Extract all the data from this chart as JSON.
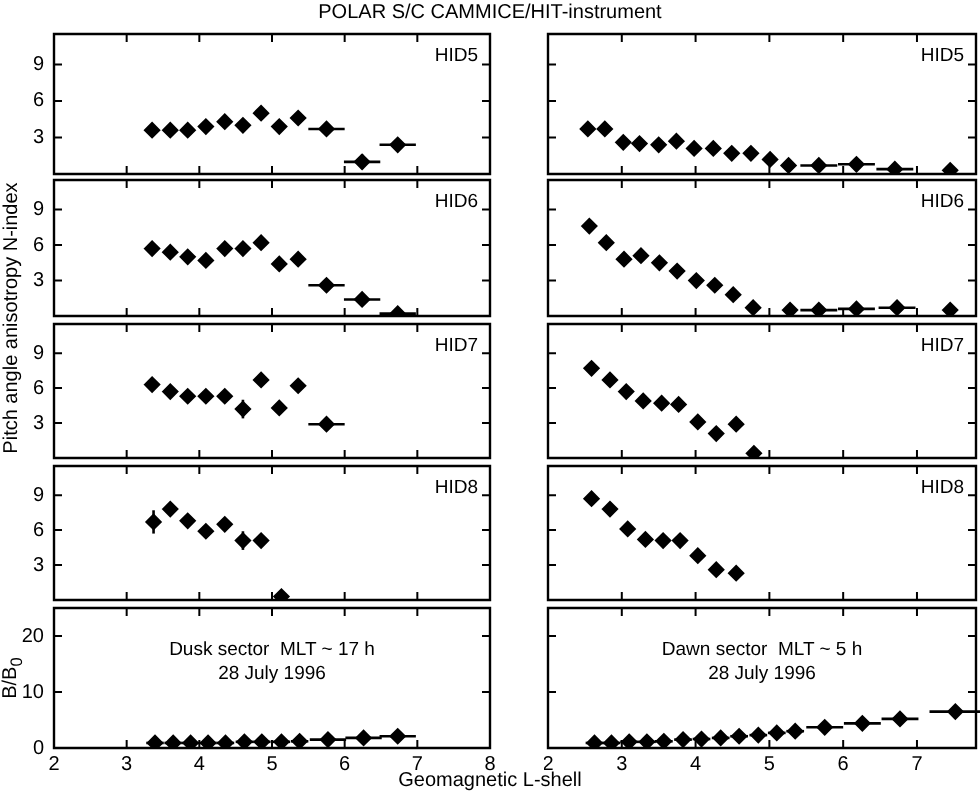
{
  "chart_data": [
    {
      "type": "scatter",
      "title": "POLAR S/C  CAMMICE/HIT-instrument",
      "ylabel": "Pitch angle anisotropy N-index",
      "annotations": [
        "HID5"
      ],
      "x": [
        3.35,
        3.6,
        3.84,
        4.09,
        4.35,
        4.6,
        4.85,
        5.1,
        5.36,
        5.75,
        6.24,
        6.73
      ],
      "values": [
        3.6,
        3.6,
        3.6,
        3.9,
        4.3,
        4.0,
        5.0,
        3.9,
        4.6,
        3.7,
        1.0,
        2.4
      ],
      "errors": [
        null,
        null,
        null,
        null,
        null,
        null,
        null,
        null,
        null,
        null,
        0.6,
        null
      ],
      "xerrors": [
        null,
        null,
        null,
        null,
        null,
        null,
        null,
        null,
        null,
        0.25,
        0.25,
        0.25
      ],
      "color": "#000000",
      "marker": "diamond",
      "xlim": [
        2,
        8
      ],
      "xticks": [
        2,
        3,
        4,
        5,
        6,
        7,
        8
      ],
      "ylim": [
        0,
        11.5
      ],
      "yticks": [
        3,
        6,
        9
      ],
      "tick_labels": "y"
    },
    {
      "type": "scatter",
      "annotations": [
        "HID5"
      ],
      "x": [
        2.54,
        2.77,
        3.02,
        3.24,
        3.5,
        3.74,
        3.98,
        4.24,
        4.49,
        4.75,
        5.01,
        5.26,
        5.67,
        6.18,
        6.7,
        7.45
      ],
      "values": [
        3.7,
        3.7,
        2.6,
        2.5,
        2.4,
        2.7,
        2.1,
        2.1,
        1.7,
        1.7,
        1.2,
        0.7,
        0.7,
        0.8,
        0.4,
        0.3
      ],
      "xerrors": [
        null,
        null,
        null,
        null,
        null,
        null,
        null,
        null,
        null,
        null,
        null,
        null,
        0.25,
        0.25,
        0.25,
        null
      ],
      "color": "#000000",
      "marker": "diamond",
      "xlim": [
        2,
        7.8
      ],
      "xticks": [
        2,
        3,
        4,
        5,
        6,
        7
      ],
      "ylim": [
        0,
        11.5
      ],
      "yticks": [
        3,
        6,
        9
      ],
      "tick_labels": false
    },
    {
      "type": "scatter",
      "annotations": [
        "HID6"
      ],
      "x": [
        3.35,
        3.6,
        3.84,
        4.09,
        4.35,
        4.6,
        4.85,
        5.1,
        5.36,
        5.75,
        6.24,
        6.73
      ],
      "values": [
        5.7,
        5.4,
        5.0,
        4.7,
        5.7,
        5.7,
        6.2,
        4.4,
        4.8,
        2.6,
        1.4,
        0.2
      ],
      "xerrors": [
        null,
        null,
        null,
        null,
        null,
        null,
        null,
        null,
        null,
        0.25,
        0.25,
        0.25
      ],
      "color": "#000000",
      "marker": "diamond",
      "xlim": [
        2,
        8
      ],
      "xticks": [
        2,
        3,
        4,
        5,
        6,
        7,
        8
      ],
      "ylim": [
        0,
        11.5
      ],
      "yticks": [
        3,
        6,
        9
      ],
      "tick_labels": "y"
    },
    {
      "type": "scatter",
      "annotations": [
        "HID6"
      ],
      "x": [
        2.56,
        2.79,
        3.03,
        3.26,
        3.51,
        3.75,
        4.01,
        4.26,
        4.51,
        4.78,
        5.28,
        5.67,
        6.18,
        6.73,
        7.45
      ],
      "values": [
        7.6,
        6.2,
        4.8,
        5.1,
        4.5,
        3.8,
        3.0,
        2.6,
        1.8,
        0.7,
        0.5,
        0.5,
        0.6,
        0.7,
        0.5
      ],
      "xerrors": [
        null,
        null,
        null,
        null,
        null,
        null,
        null,
        null,
        null,
        null,
        null,
        0.25,
        0.25,
        0.25,
        null
      ],
      "color": "#000000",
      "marker": "diamond",
      "xlim": [
        2,
        7.8
      ],
      "xticks": [
        2,
        3,
        4,
        5,
        6,
        7
      ],
      "ylim": [
        0,
        11.5
      ],
      "yticks": [
        3,
        6,
        9
      ],
      "tick_labels": false
    },
    {
      "type": "scatter",
      "annotations": [
        "HID7"
      ],
      "x": [
        3.35,
        3.6,
        3.84,
        4.09,
        4.35,
        4.6,
        4.85,
        5.1,
        5.36,
        5.75
      ],
      "values": [
        6.3,
        5.7,
        5.3,
        5.3,
        5.3,
        4.2,
        6.7,
        4.3,
        6.2,
        2.9
      ],
      "errors": [
        null,
        null,
        null,
        null,
        null,
        0.8,
        null,
        null,
        null,
        null
      ],
      "xerrors": [
        null,
        null,
        null,
        null,
        null,
        null,
        null,
        null,
        null,
        0.25
      ],
      "color": "#000000",
      "marker": "diamond",
      "xlim": [
        2,
        8
      ],
      "xticks": [
        2,
        3,
        4,
        5,
        6,
        7,
        8
      ],
      "ylim": [
        0,
        11.5
      ],
      "yticks": [
        3,
        6,
        9
      ],
      "tick_labels": "y"
    },
    {
      "type": "scatter",
      "annotations": [
        "HID7"
      ],
      "x": [
        2.59,
        2.84,
        3.06,
        3.29,
        3.54,
        3.77,
        4.03,
        4.28,
        4.55,
        4.79
      ],
      "values": [
        7.7,
        6.7,
        5.7,
        4.9,
        4.7,
        4.6,
        3.1,
        2.1,
        2.9,
        0.4
      ],
      "color": "#000000",
      "marker": "diamond",
      "xlim": [
        2,
        7.8
      ],
      "xticks": [
        2,
        3,
        4,
        5,
        6,
        7
      ],
      "ylim": [
        0,
        11.5
      ],
      "yticks": [
        3,
        6,
        9
      ],
      "tick_labels": false
    },
    {
      "type": "scatter",
      "annotations": [
        "HID8"
      ],
      "x": [
        3.37,
        3.6,
        3.84,
        4.09,
        4.35,
        4.6,
        4.85,
        5.13
      ],
      "values": [
        6.7,
        7.8,
        6.8,
        5.9,
        6.5,
        5.1,
        5.1,
        0.3
      ],
      "errors": [
        1.0,
        null,
        null,
        null,
        null,
        0.8,
        null,
        null
      ],
      "color": "#000000",
      "marker": "diamond",
      "xlim": [
        2,
        8
      ],
      "xticks": [
        2,
        3,
        4,
        5,
        6,
        7,
        8
      ],
      "ylim": [
        0,
        11.5
      ],
      "yticks": [
        3,
        6,
        9
      ],
      "tick_labels": "y"
    },
    {
      "type": "scatter",
      "annotations": [
        "HID8"
      ],
      "x": [
        2.59,
        2.84,
        3.08,
        3.32,
        3.56,
        3.79,
        4.03,
        4.28,
        4.55
      ],
      "values": [
        8.7,
        7.8,
        6.1,
        5.2,
        5.1,
        5.1,
        3.8,
        2.6,
        2.3
      ],
      "color": "#000000",
      "marker": "diamond",
      "xlim": [
        2,
        7.8
      ],
      "xticks": [
        2,
        3,
        4,
        5,
        6,
        7
      ],
      "ylim": [
        0,
        11.5
      ],
      "yticks": [
        3,
        6,
        9
      ],
      "tick_labels": false
    },
    {
      "type": "scatter",
      "ylabel": "B/B$_{0}$",
      "xlabel": "Geomagnetic L-shell",
      "annotations": [
        "Dusk sector  MLT ~ 17 h",
        "28 July 1996"
      ],
      "x": [
        3.39,
        3.64,
        3.88,
        4.12,
        4.36,
        4.62,
        4.86,
        5.13,
        5.38,
        5.77,
        6.26,
        6.73
      ],
      "values": [
        0.9,
        0.9,
        0.9,
        0.9,
        0.9,
        1.1,
        1.1,
        1.1,
        1.2,
        1.5,
        1.8,
        2.1
      ],
      "xerrors": [
        0.12,
        0.12,
        0.12,
        0.12,
        0.12,
        0.12,
        0.12,
        0.12,
        0.12,
        0.25,
        0.25,
        0.25
      ],
      "color": "#000000",
      "marker": "diamond",
      "xlim": [
        2,
        8
      ],
      "xticks": [
        2,
        3,
        4,
        5,
        6,
        7,
        8
      ],
      "ylim": [
        0,
        25
      ],
      "yticks": [
        0,
        10,
        20
      ]
    },
    {
      "type": "scatter",
      "annotations": [
        "Dawn sector  MLT ~ 5 h",
        "28 July 1996"
      ],
      "x": [
        2.63,
        2.86,
        3.1,
        3.34,
        3.57,
        3.83,
        4.08,
        4.34,
        4.59,
        4.85,
        5.1,
        5.35,
        5.75,
        6.26,
        6.77,
        7.52
      ],
      "values": [
        0.9,
        0.9,
        1.1,
        1.1,
        1.2,
        1.5,
        1.6,
        1.8,
        2.1,
        2.3,
        2.7,
        3.0,
        3.7,
        4.4,
        5.2,
        6.5
      ],
      "xerrors": [
        0.12,
        0.12,
        0.12,
        0.12,
        0.12,
        0.12,
        0.12,
        0.12,
        0.12,
        0.12,
        0.12,
        0.12,
        0.25,
        0.25,
        0.25,
        0.35
      ],
      "color": "#000000",
      "marker": "diamond",
      "xlim": [
        2,
        7.8
      ],
      "xticks": [
        2,
        3,
        4,
        5,
        6,
        7
      ],
      "ylim": [
        0,
        25
      ],
      "yticks": [
        0,
        10,
        20
      ],
      "tick_labels": "x"
    }
  ]
}
